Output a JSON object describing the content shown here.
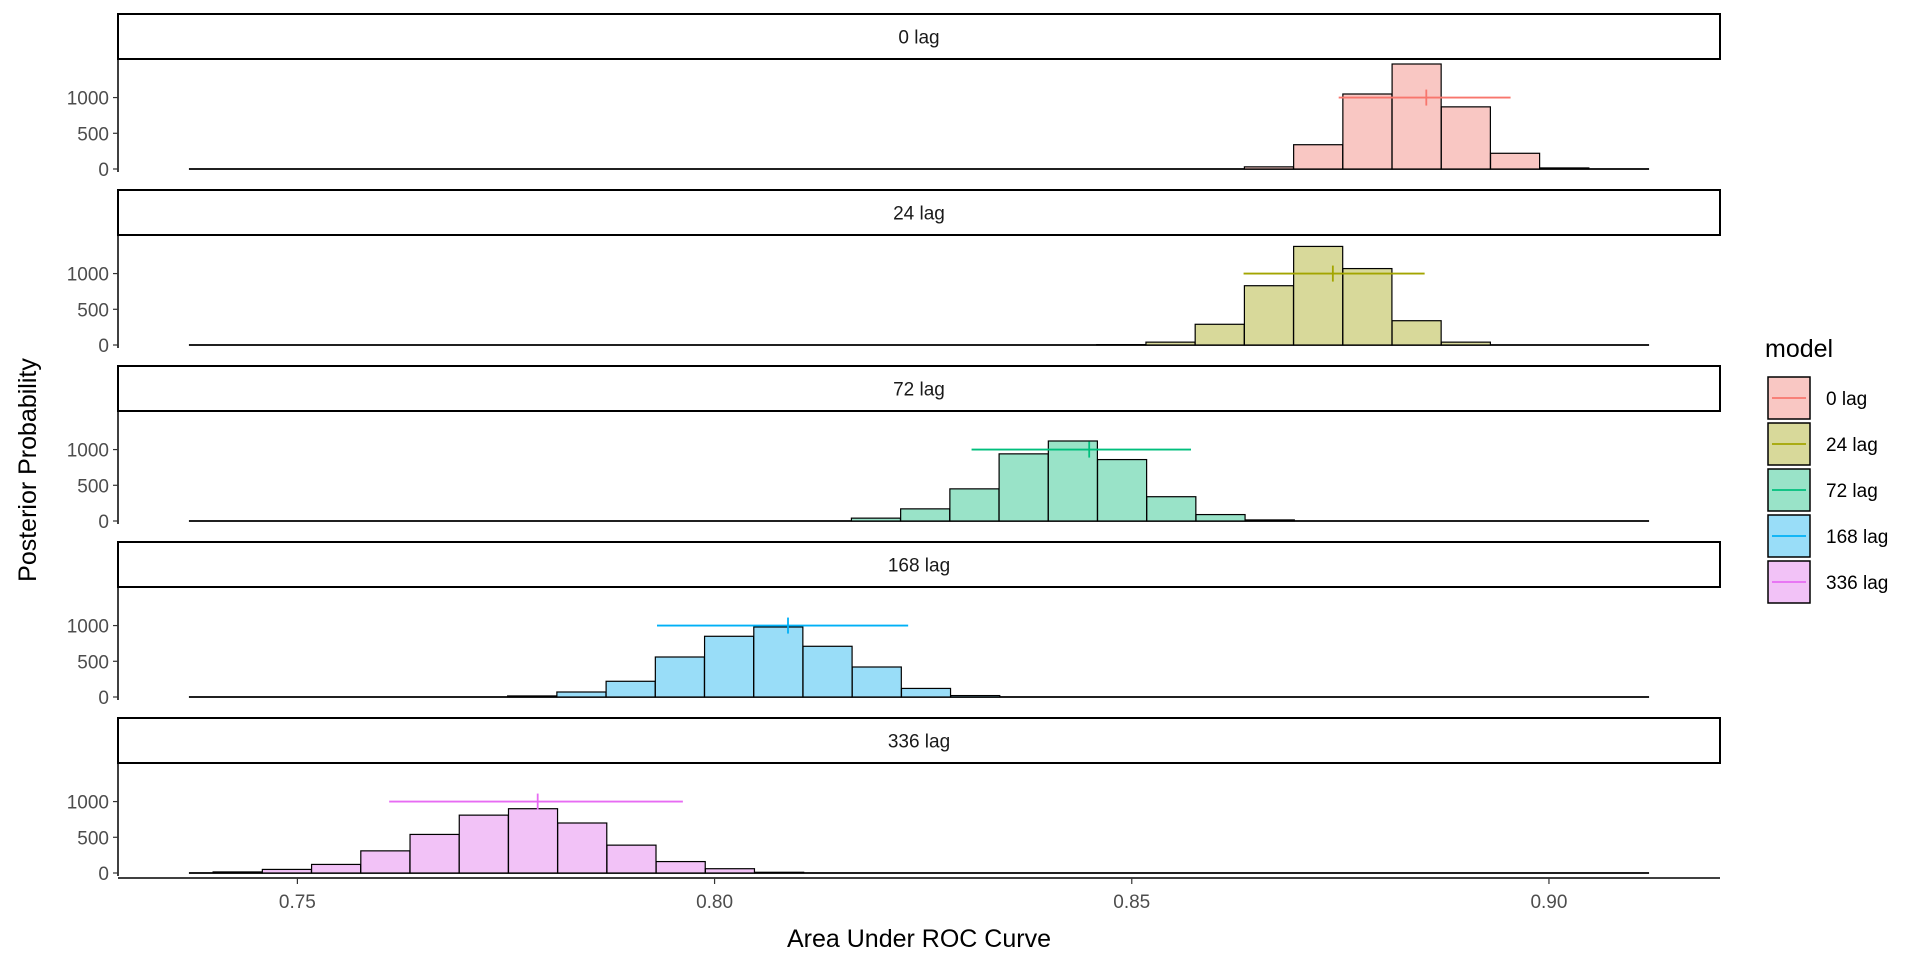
{
  "chart_data": {
    "type": "histogram",
    "xlabel": "Area Under ROC Curve",
    "ylabel": "Posterior Probability",
    "xlim": [
      0.7285,
      0.9205
    ],
    "xticks": [
      0.75,
      0.8,
      0.85,
      0.9
    ],
    "xtick_labels": [
      "0.75",
      "0.80",
      "0.85",
      "0.90"
    ],
    "yticks": [
      0,
      500,
      1000
    ],
    "yticks_labels": [
      "0",
      "500",
      "1000"
    ],
    "ylim": [
      0,
      1470
    ],
    "density_range": [
      0.737,
      0.912
    ],
    "bin_width": 0.00588,
    "legend_title": "model",
    "legend_position": "right",
    "grid": false,
    "panels": [
      {
        "name": "0 lag",
        "color": "#F8766D",
        "fill": "#F9C7C3",
        "bins": [
          [
            0.8635,
            30
          ],
          [
            0.8694,
            340
          ],
          [
            0.8753,
            1050
          ],
          [
            0.8812,
            1470
          ],
          [
            0.8871,
            870
          ],
          [
            0.893,
            220
          ],
          [
            0.8989,
            15
          ]
        ],
        "median": 0.8853,
        "interval": [
          0.8748,
          0.8954
        ]
      },
      {
        "name": "24 lag",
        "color": "#A3A500",
        "fill": "#D8D99A",
        "bins": [
          [
            0.8458,
            5
          ],
          [
            0.8517,
            40
          ],
          [
            0.8576,
            290
          ],
          [
            0.8635,
            830
          ],
          [
            0.8694,
            1380
          ],
          [
            0.8753,
            1070
          ],
          [
            0.8812,
            340
          ],
          [
            0.8871,
            40
          ]
        ],
        "median": 0.8741,
        "interval": [
          0.8634,
          0.8851
        ]
      },
      {
        "name": "72 lag",
        "color": "#00BF7D",
        "fill": "#99E3C8",
        "bins": [
          [
            0.8164,
            40
          ],
          [
            0.8223,
            170
          ],
          [
            0.8282,
            450
          ],
          [
            0.8341,
            940
          ],
          [
            0.84,
            1120
          ],
          [
            0.8459,
            860
          ],
          [
            0.8518,
            340
          ],
          [
            0.8577,
            90
          ],
          [
            0.8636,
            15
          ]
        ],
        "median": 0.8449,
        "interval": [
          0.8308,
          0.8571
        ]
      },
      {
        "name": "168 lag",
        "color": "#00B0F6",
        "fill": "#99DDF8",
        "bins": [
          [
            0.7752,
            15
          ],
          [
            0.7811,
            70
          ],
          [
            0.787,
            220
          ],
          [
            0.7929,
            560
          ],
          [
            0.7988,
            850
          ],
          [
            0.8047,
            980
          ],
          [
            0.8106,
            710
          ],
          [
            0.8165,
            420
          ],
          [
            0.8224,
            120
          ],
          [
            0.8283,
            20
          ]
        ],
        "median": 0.8088,
        "interval": [
          0.7931,
          0.8232
        ]
      },
      {
        "name": "336 lag",
        "color": "#E76BF3",
        "fill": "#F2C2F7",
        "bins": [
          [
            0.7399,
            15
          ],
          [
            0.7458,
            50
          ],
          [
            0.7517,
            120
          ],
          [
            0.7576,
            310
          ],
          [
            0.7635,
            540
          ],
          [
            0.7694,
            810
          ],
          [
            0.7753,
            900
          ],
          [
            0.7812,
            700
          ],
          [
            0.7871,
            390
          ],
          [
            0.793,
            160
          ],
          [
            0.7989,
            60
          ],
          [
            0.8048,
            10
          ]
        ],
        "median": 0.7788,
        "interval": [
          0.761,
          0.7962
        ]
      }
    ]
  }
}
